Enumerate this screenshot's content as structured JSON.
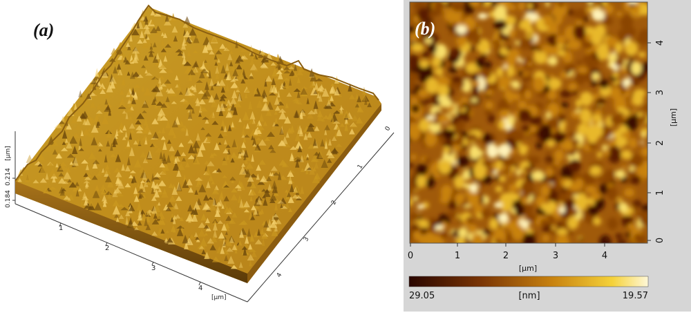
{
  "panel_a": {
    "label": "(a)",
    "x_ticks": [
      "1",
      "2",
      "3",
      "4"
    ],
    "y_ticks": [
      "0",
      "1",
      "2",
      "3",
      "4"
    ],
    "x_unit": "[µm]",
    "z_unit": "[µm]",
    "z_ticks": [
      "0.184",
      "0.214"
    ],
    "colors": {
      "surface": "#c9971f",
      "shadow": "#6e4a0c",
      "highlight": "#f3cf6a"
    }
  },
  "panel_b": {
    "label": "(b)",
    "x_ticks": [
      "0",
      "1",
      "2",
      "3",
      "4"
    ],
    "y_ticks": [
      "0",
      "1",
      "2",
      "3",
      "4"
    ],
    "x_unit": "[µm]",
    "y_unit": "[µm]",
    "colorbar": {
      "min_label": "29.05",
      "unit": "[nm]",
      "max_label": "19.57",
      "colors": [
        "#2a0600",
        "#7a3505",
        "#c8820f",
        "#f5d23a",
        "#fff8d8"
      ]
    }
  }
}
